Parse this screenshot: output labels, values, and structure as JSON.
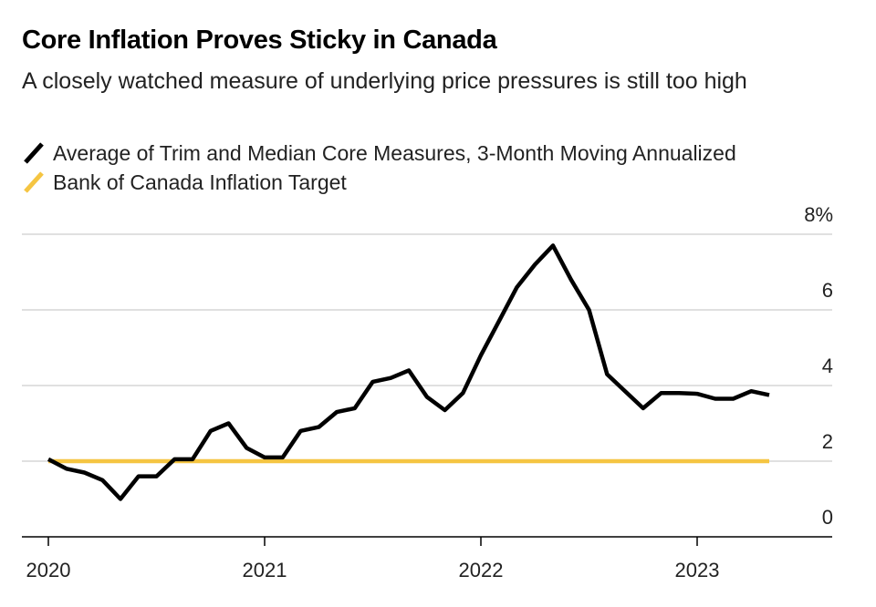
{
  "title": "Core Inflation Proves Sticky in Canada",
  "subtitle": "A closely watched measure of underlying price pressures is still too high",
  "legend": [
    {
      "label": "Average of Trim and Median Core Measures, 3-Month Moving Annualized",
      "color": "#000000"
    },
    {
      "label": "Bank of Canada Inflation Target",
      "color": "#f5c542"
    }
  ],
  "chart_data": {
    "type": "line",
    "title": "Core Inflation Proves Sticky in Canada",
    "subtitle": "A closely watched measure of underlying price pressures is still too high",
    "y_unit_label": "8%",
    "ylim": [
      0,
      8
    ],
    "yticks": [
      0,
      2,
      4,
      6,
      8
    ],
    "ytick_labels": [
      "0",
      "2",
      "4",
      "6",
      "8%"
    ],
    "xlim": [
      "2019-11",
      "2023-08"
    ],
    "xticks": [
      "2020-01",
      "2021-01",
      "2022-01",
      "2023-01"
    ],
    "xtick_labels": [
      "2020",
      "2021",
      "2022",
      "2023"
    ],
    "grid": "horizontal",
    "legend_position": "top-left",
    "series": [
      {
        "name": "Average of Trim and Median Core Measures, 3-Month Moving Annualized",
        "color": "#000000",
        "x": [
          "2020-01",
          "2020-02",
          "2020-03",
          "2020-04",
          "2020-05",
          "2020-06",
          "2020-07",
          "2020-08",
          "2020-09",
          "2020-10",
          "2020-11",
          "2020-12",
          "2021-01",
          "2021-02",
          "2021-03",
          "2021-04",
          "2021-05",
          "2021-06",
          "2021-07",
          "2021-08",
          "2021-09",
          "2021-10",
          "2021-11",
          "2021-12",
          "2022-01",
          "2022-02",
          "2022-03",
          "2022-04",
          "2022-05",
          "2022-06",
          "2022-07",
          "2022-08",
          "2022-09",
          "2022-10",
          "2022-11",
          "2022-12",
          "2023-01",
          "2023-02",
          "2023-03",
          "2023-04",
          "2023-05"
        ],
        "values": [
          2.05,
          1.8,
          1.7,
          1.5,
          1.0,
          1.6,
          1.6,
          2.05,
          2.05,
          2.8,
          3.0,
          2.35,
          2.1,
          2.1,
          2.8,
          2.9,
          3.3,
          3.4,
          4.1,
          4.2,
          4.4,
          3.7,
          3.35,
          3.8,
          4.8,
          5.7,
          6.6,
          7.2,
          7.7,
          6.8,
          6.0,
          4.3,
          3.85,
          3.4,
          3.8,
          3.8,
          3.78,
          3.65,
          3.65,
          3.85,
          3.75
        ]
      },
      {
        "name": "Bank of Canada Inflation Target",
        "color": "#f5c542",
        "x": [
          "2020-01",
          "2023-05"
        ],
        "values": [
          2,
          2
        ]
      }
    ]
  }
}
